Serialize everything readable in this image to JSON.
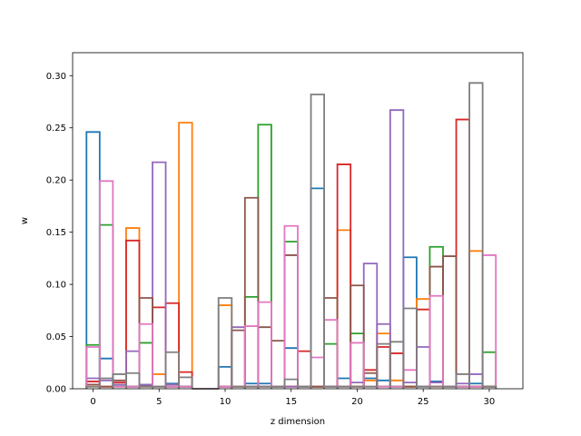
{
  "chart_data": {
    "type": "step",
    "title": "",
    "xlabel": "z dimension",
    "ylabel": "w",
    "xlim": [
      -1.55,
      32.55
    ],
    "ylim": [
      0,
      0.322
    ],
    "xticks": [
      0,
      5,
      10,
      15,
      20,
      25,
      30
    ],
    "xtick_labels": [
      "0",
      "5",
      "10",
      "15",
      "20",
      "25",
      "30"
    ],
    "yticks": [
      0.0,
      0.05,
      0.1,
      0.15,
      0.2,
      0.25,
      0.3
    ],
    "ytick_labels": [
      "0.00",
      "0.05",
      "0.10",
      "0.15",
      "0.20",
      "0.25",
      "0.30"
    ],
    "colors": {
      "series_blue": "#1f77b4",
      "series_orange": "#ff7f0e",
      "series_green": "#2ca02c",
      "series_red": "#d62728",
      "series_purple": "#9467bd",
      "series_brown": "#8c564b",
      "series_pink": "#e377c2",
      "series_gray": "#7f7f7f"
    },
    "series": [
      {
        "name": "series_blue",
        "values": [
          0.246,
          0.029,
          0.004,
          0.002,
          0.003,
          0.002,
          0.005,
          0.002,
          0.0,
          0.0,
          0.021,
          0.002,
          0.005,
          0.005,
          0.002,
          0.039,
          0.002,
          0.192,
          0.002,
          0.01,
          0.002,
          0.01,
          0.008,
          0.002,
          0.126,
          0.002,
          0.007,
          0.002,
          0.002,
          0.005,
          0.002
        ]
      },
      {
        "name": "series_orange",
        "values": [
          0.002,
          0.002,
          0.002,
          0.154,
          0.002,
          0.014,
          0.002,
          0.255,
          0.0,
          0.0,
          0.08,
          0.002,
          0.002,
          0.002,
          0.002,
          0.002,
          0.002,
          0.002,
          0.002,
          0.152,
          0.002,
          0.008,
          0.053,
          0.008,
          0.002,
          0.086,
          0.002,
          0.002,
          0.002,
          0.132,
          0.002
        ]
      },
      {
        "name": "series_green",
        "values": [
          0.042,
          0.157,
          0.002,
          0.002,
          0.044,
          0.002,
          0.002,
          0.002,
          0.0,
          0.0,
          0.002,
          0.002,
          0.088,
          0.253,
          0.002,
          0.141,
          0.002,
          0.002,
          0.043,
          0.002,
          0.053,
          0.002,
          0.002,
          0.002,
          0.002,
          0.002,
          0.136,
          0.002,
          0.002,
          0.002,
          0.035
        ]
      },
      {
        "name": "series_red",
        "values": [
          0.007,
          0.002,
          0.006,
          0.142,
          0.002,
          0.078,
          0.082,
          0.016,
          0.0,
          0.0,
          0.002,
          0.002,
          0.002,
          0.002,
          0.002,
          0.002,
          0.036,
          0.002,
          0.002,
          0.215,
          0.002,
          0.018,
          0.04,
          0.034,
          0.002,
          0.076,
          0.002,
          0.002,
          0.258,
          0.002,
          0.002
        ]
      },
      {
        "name": "series_purple",
        "values": [
          0.01,
          0.008,
          0.004,
          0.036,
          0.004,
          0.217,
          0.004,
          0.002,
          0.0,
          0.0,
          0.002,
          0.059,
          0.002,
          0.002,
          0.002,
          0.002,
          0.002,
          0.002,
          0.002,
          0.002,
          0.006,
          0.12,
          0.062,
          0.267,
          0.006,
          0.04,
          0.006,
          0.002,
          0.005,
          0.014,
          0.002
        ]
      },
      {
        "name": "series_brown",
        "values": [
          0.004,
          0.002,
          0.008,
          0.002,
          0.087,
          0.002,
          0.002,
          0.002,
          0.0,
          0.0,
          0.002,
          0.056,
          0.183,
          0.059,
          0.046,
          0.128,
          0.002,
          0.002,
          0.087,
          0.002,
          0.099,
          0.015,
          0.002,
          0.002,
          0.002,
          0.002,
          0.117,
          0.127,
          0.002,
          0.002,
          0.002
        ]
      },
      {
        "name": "series_pink",
        "values": [
          0.04,
          0.199,
          0.002,
          0.002,
          0.062,
          0.002,
          0.002,
          0.002,
          0.0,
          0.0,
          0.002,
          0.002,
          0.06,
          0.083,
          0.002,
          0.156,
          0.002,
          0.03,
          0.066,
          0.002,
          0.044,
          0.002,
          0.002,
          0.002,
          0.018,
          0.002,
          0.089,
          0.002,
          0.002,
          0.002,
          0.128
        ]
      },
      {
        "name": "series_gray",
        "values": [
          0.002,
          0.01,
          0.014,
          0.015,
          0.002,
          0.002,
          0.035,
          0.011,
          0.0,
          0.0,
          0.087,
          0.002,
          0.002,
          0.002,
          0.002,
          0.009,
          0.002,
          0.282,
          0.002,
          0.002,
          0.002,
          0.002,
          0.043,
          0.045,
          0.077,
          0.002,
          0.002,
          0.002,
          0.014,
          0.293,
          0.002
        ]
      }
    ]
  }
}
